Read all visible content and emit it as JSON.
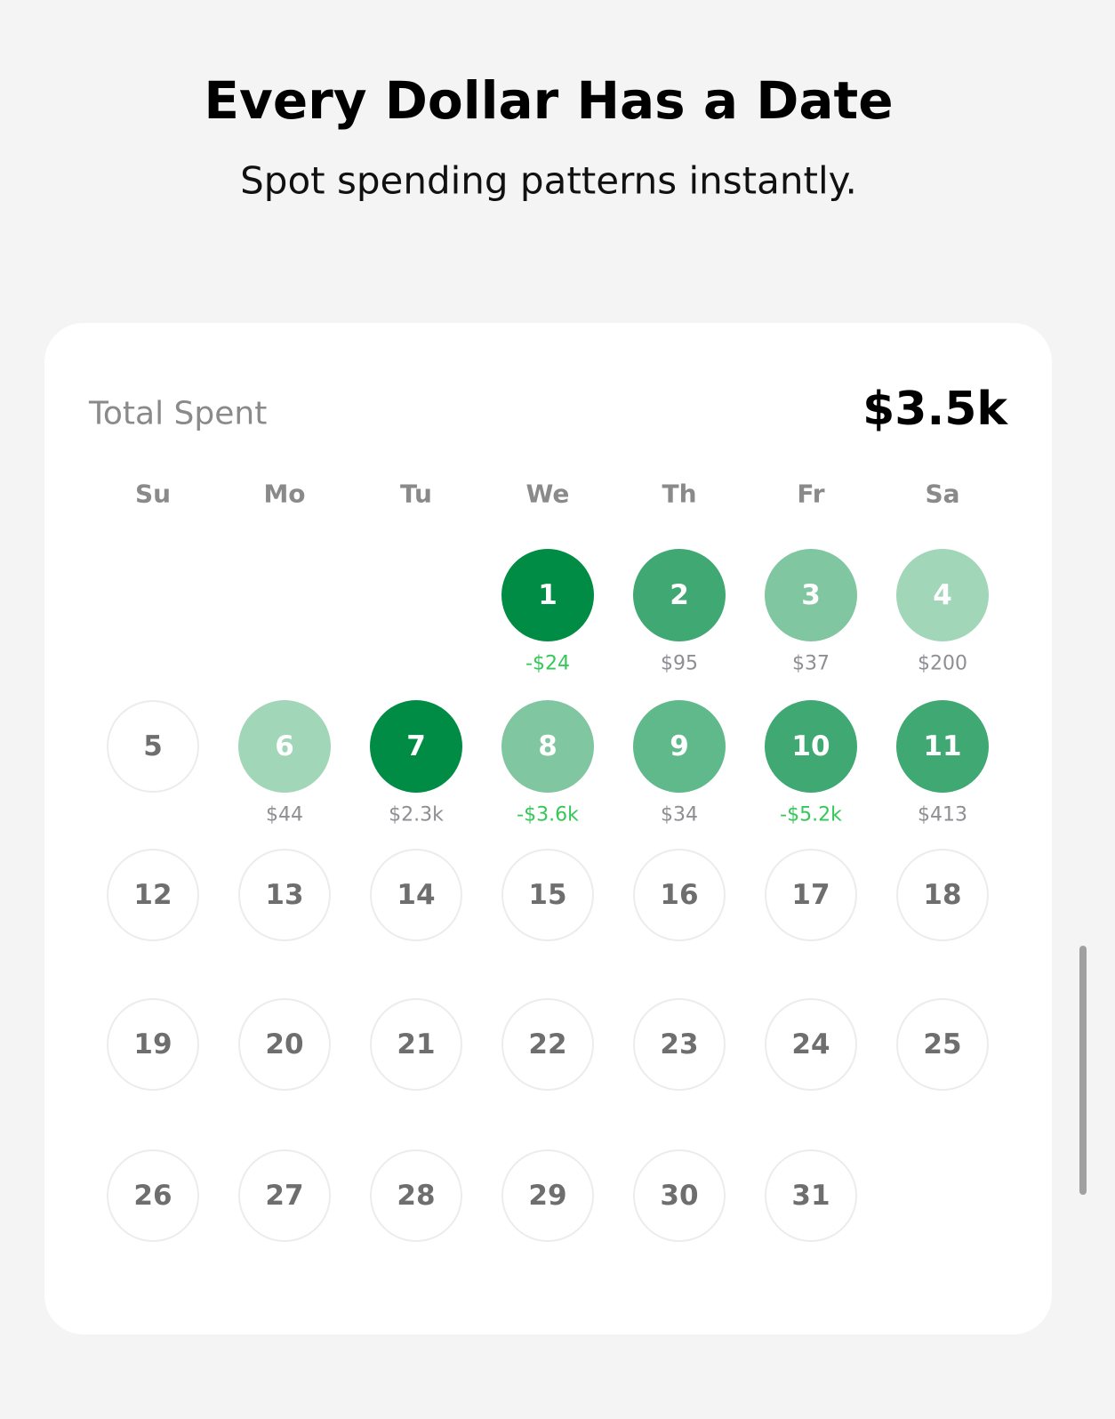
{
  "header": {
    "title": "Every Dollar Has a Date",
    "subtitle": "Spot spending patterns instantly."
  },
  "card": {
    "label": "Total Spent",
    "total": "$3.5k",
    "weekdays": [
      "Su",
      "Mo",
      "Tu",
      "We",
      "Th",
      "Fr",
      "Sa"
    ],
    "weeks": [
      [
        null,
        null,
        null,
        {
          "day": "1",
          "amount": "-$24",
          "fill": "#008c45",
          "amount_color": "#34c759"
        },
        {
          "day": "2",
          "amount": "$95",
          "fill": "#40a872",
          "amount_color": "#8e8e93"
        },
        {
          "day": "3",
          "amount": "$37",
          "fill": "#80c6a0",
          "amount_color": "#8e8e93"
        },
        {
          "day": "4",
          "amount": "$200",
          "fill": "#a1d6b9",
          "amount_color": "#8e8e93"
        }
      ],
      [
        {
          "day": "5"
        },
        {
          "day": "6",
          "amount": "$44",
          "fill": "#a1d6b9",
          "amount_color": "#8e8e93"
        },
        {
          "day": "7",
          "amount": "$2.3k",
          "fill": "#008c45",
          "amount_color": "#8e8e93"
        },
        {
          "day": "8",
          "amount": "-$3.6k",
          "fill": "#80c6a0",
          "amount_color": "#34c759"
        },
        {
          "day": "9",
          "amount": "$34",
          "fill": "#60b98a",
          "amount_color": "#8e8e93"
        },
        {
          "day": "10",
          "amount": "-$5.2k",
          "fill": "#40a872",
          "amount_color": "#34c759"
        },
        {
          "day": "11",
          "amount": "$413",
          "fill": "#40a872",
          "amount_color": "#8e8e93"
        }
      ],
      [
        {
          "day": "12"
        },
        {
          "day": "13"
        },
        {
          "day": "14"
        },
        {
          "day": "15"
        },
        {
          "day": "16"
        },
        {
          "day": "17"
        },
        {
          "day": "18"
        }
      ],
      [
        {
          "day": "19"
        },
        {
          "day": "20"
        },
        {
          "day": "21"
        },
        {
          "day": "22"
        },
        {
          "day": "23"
        },
        {
          "day": "24"
        },
        {
          "day": "25"
        }
      ],
      [
        {
          "day": "26"
        },
        {
          "day": "27"
        },
        {
          "day": "28"
        },
        {
          "day": "29"
        },
        {
          "day": "30"
        },
        {
          "day": "31"
        },
        null
      ]
    ]
  }
}
